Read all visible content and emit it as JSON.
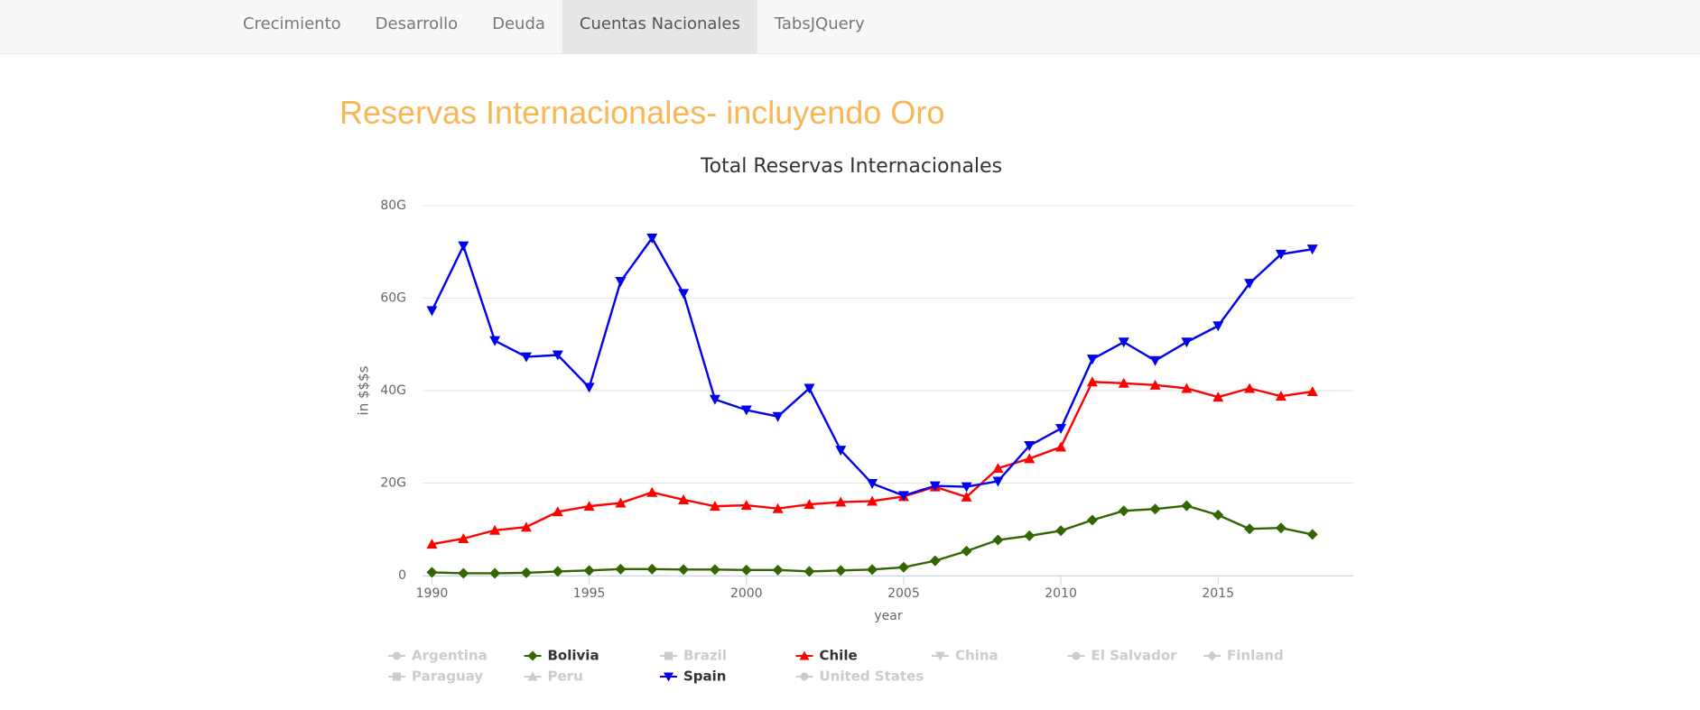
{
  "nav": {
    "tabs": [
      "Crecimiento",
      "Desarrollo",
      "Deuda",
      "Cuentas Nacionales",
      "TabsJQuery"
    ],
    "active_tab": 3
  },
  "heading": "Reservas Internacionales- incluyendo Oro",
  "chart_data": {
    "type": "line",
    "title": "Total Reservas Internacionales",
    "x_label": "year",
    "y_label": "in $$$s",
    "x": [
      1990,
      1991,
      1992,
      1993,
      1994,
      1995,
      1996,
      1997,
      1998,
      1999,
      2000,
      2001,
      2002,
      2003,
      2004,
      2005,
      2006,
      2007,
      2008,
      2009,
      2010,
      2011,
      2012,
      2013,
      2014,
      2015,
      2016,
      2017,
      2018
    ],
    "xlim": [
      1989.7,
      2019.3
    ],
    "xticks": [
      1990,
      1995,
      2000,
      2005,
      2010,
      2015
    ],
    "ylim": [
      0,
      80
    ],
    "yticks": [
      0,
      {
        "value": 20,
        "label": "20G"
      },
      {
        "value": 40,
        "label": "40G"
      },
      {
        "value": 60,
        "label": "60G"
      },
      {
        "value": 80,
        "label": "80G"
      }
    ],
    "grid": true,
    "series": [
      {
        "name": "Argentina",
        "marker": "circle",
        "visible": false
      },
      {
        "name": "Bolivia",
        "marker": "diamond",
        "color": "#336600",
        "visible": true,
        "values": [
          0.7,
          0.5,
          0.5,
          0.6,
          0.9,
          1.1,
          1.4,
          1.4,
          1.3,
          1.3,
          1.2,
          1.2,
          0.9,
          1.1,
          1.3,
          1.8,
          3.2,
          5.3,
          7.7,
          8.6,
          9.7,
          12,
          14,
          14.4,
          15.1,
          13.1,
          10.1,
          10.3,
          8.9
        ]
      },
      {
        "name": "Brazil",
        "marker": "square",
        "visible": false
      },
      {
        "name": "Chile",
        "marker": "triangle",
        "color": "#ff0000",
        "visible": true,
        "values": [
          6.8,
          8,
          9.8,
          10.5,
          13.8,
          15,
          15.7,
          18,
          16.4,
          15,
          15.2,
          14.5,
          15.4,
          15.9,
          16.1,
          17.1,
          19.2,
          17,
          23.2,
          25.3,
          27.8,
          41.9,
          41.6,
          41.2,
          40.5,
          38.6,
          40.5,
          38.8,
          39.8
        ]
      },
      {
        "name": "China",
        "marker": "triangle-down",
        "visible": false
      },
      {
        "name": "El Salvador",
        "marker": "circle",
        "visible": false
      },
      {
        "name": "Finland",
        "marker": "diamond",
        "visible": false
      },
      {
        "name": "Paraguay",
        "marker": "square",
        "visible": false
      },
      {
        "name": "Peru",
        "marker": "triangle",
        "visible": false
      },
      {
        "name": "Spain",
        "marker": "triangle-down",
        "color": "#0000ee",
        "visible": true,
        "values": [
          57.3,
          71.3,
          50.8,
          47.3,
          47.7,
          40.7,
          63.6,
          73,
          61,
          38.1,
          35.8,
          34.4,
          40.5,
          27.1,
          19.9,
          17.3,
          19.4,
          19.2,
          20.4,
          28.1,
          31.8,
          46.8,
          50.5,
          46.5,
          50.5,
          54,
          63.2,
          69.5,
          70.6
        ]
      },
      {
        "name": "United States",
        "marker": "circle",
        "visible": false
      }
    ]
  }
}
